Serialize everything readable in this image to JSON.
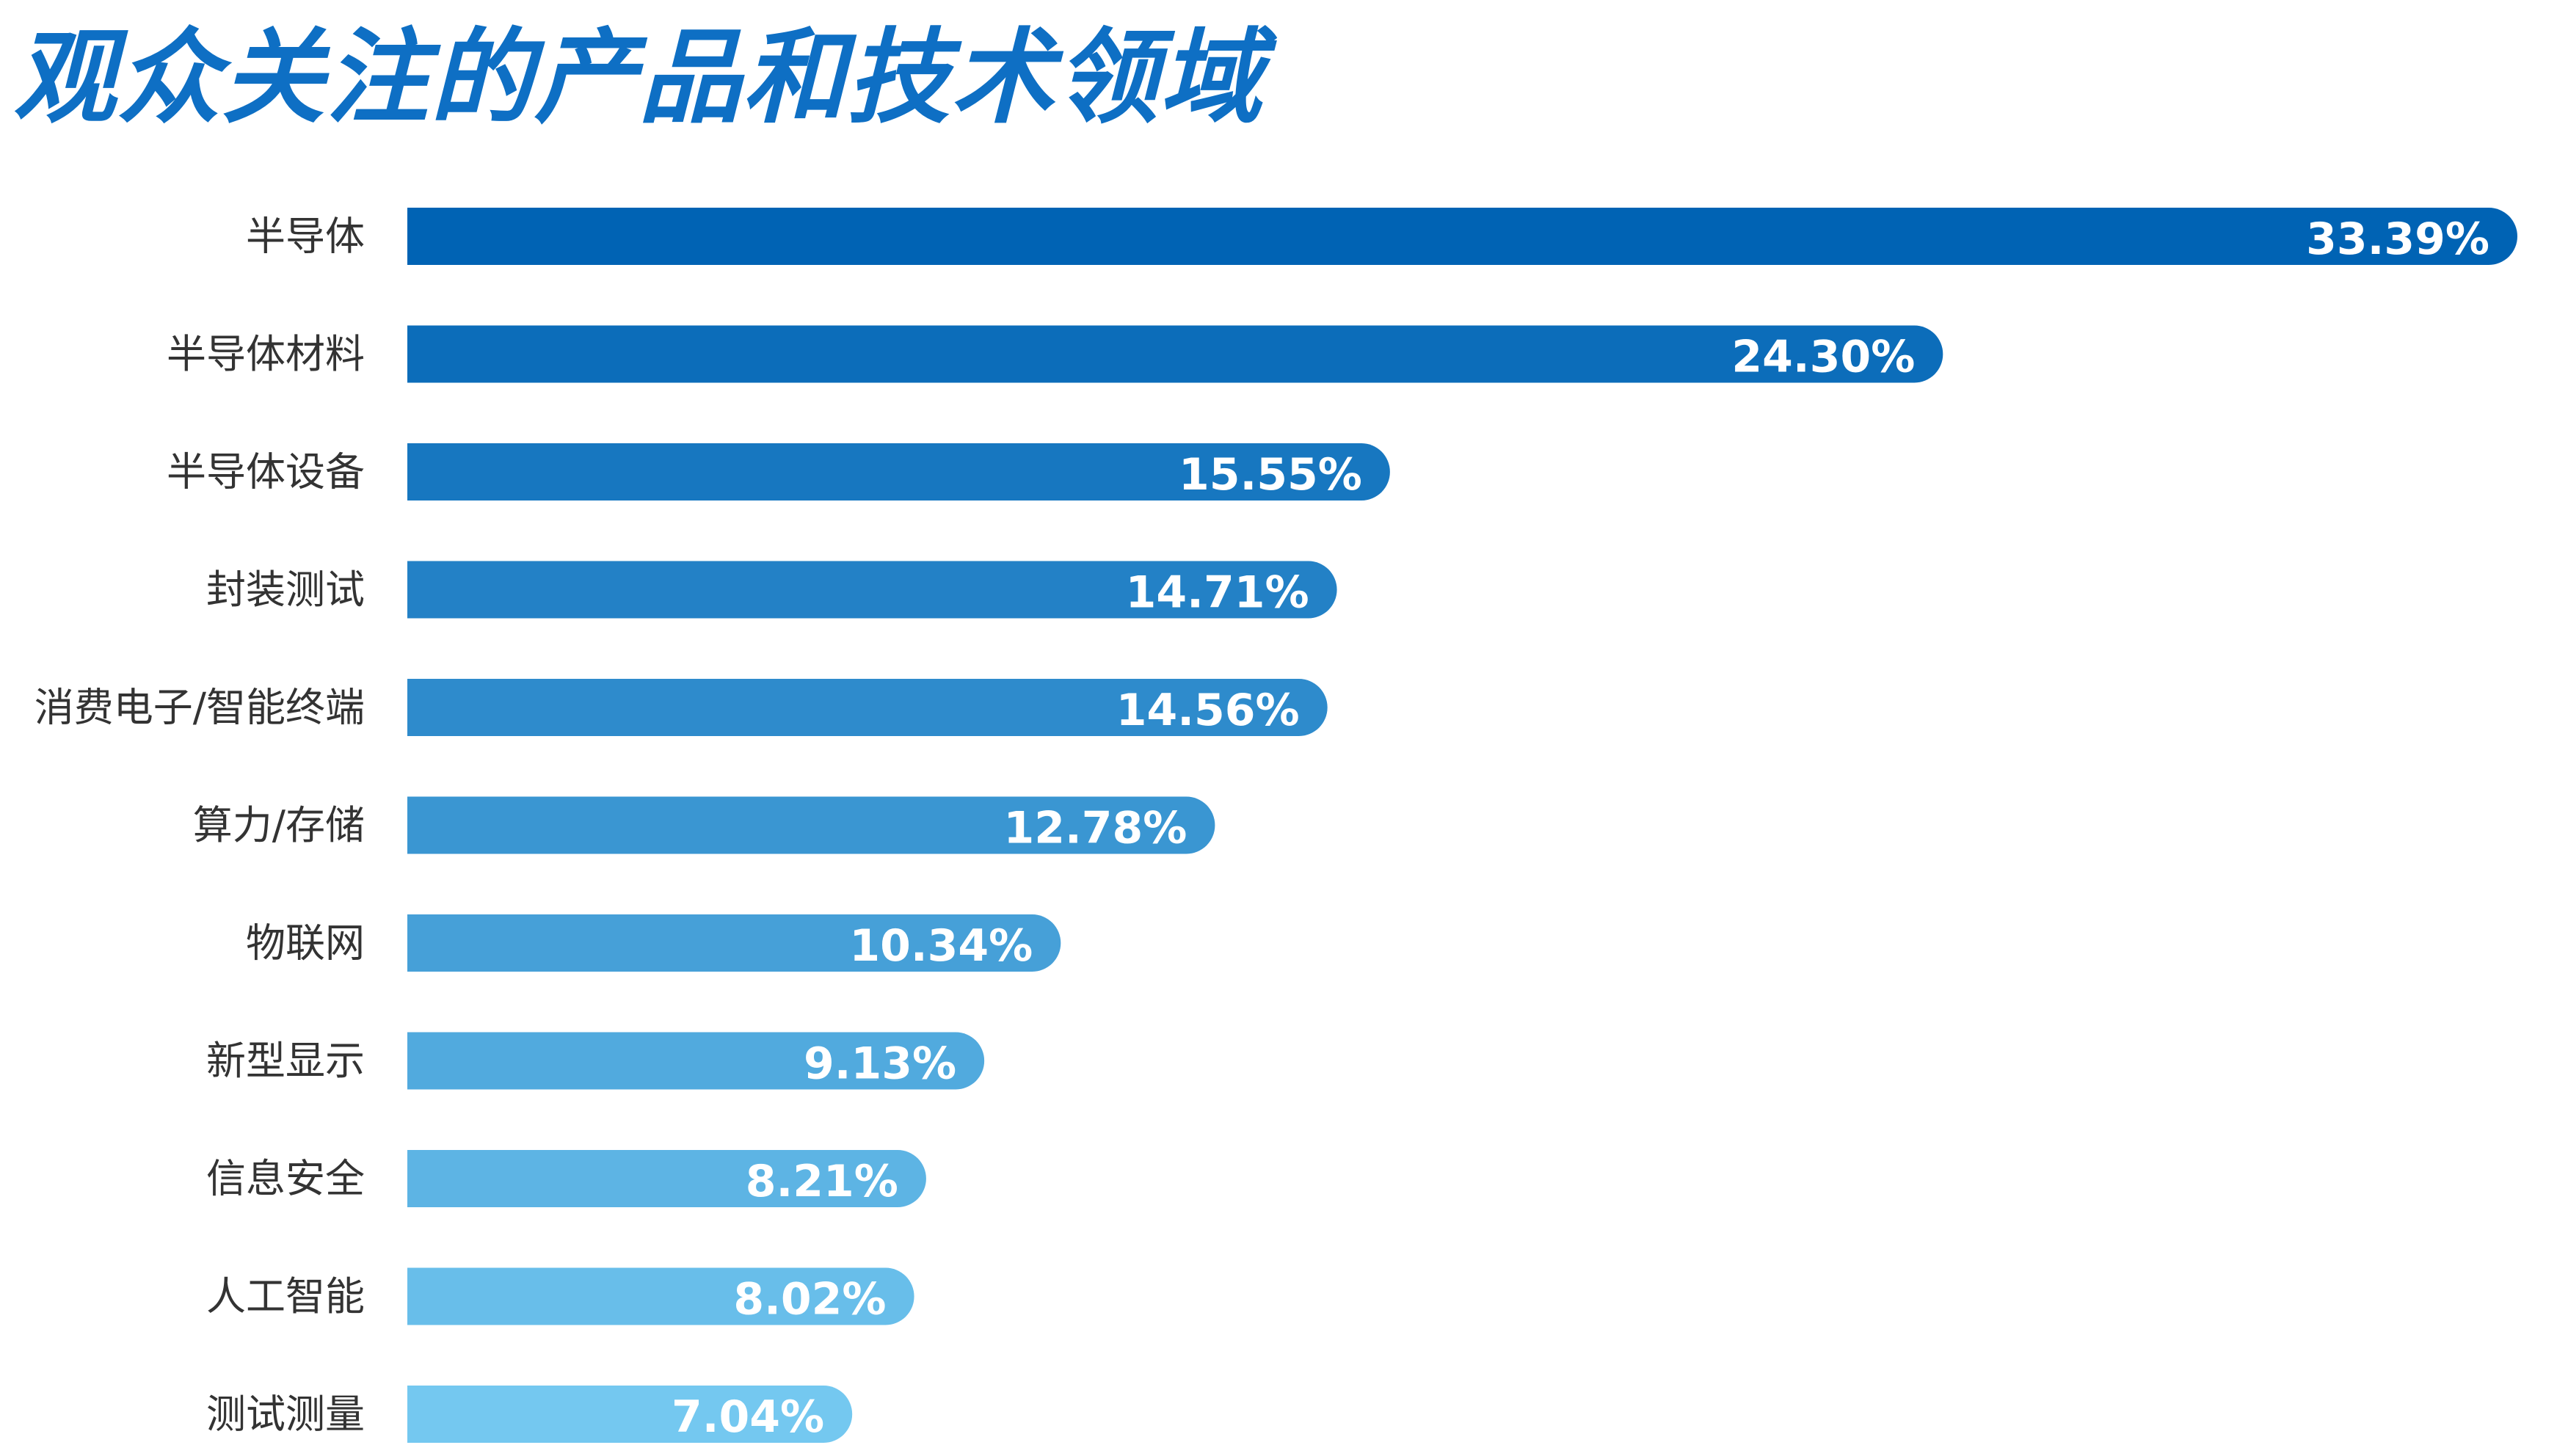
{
  "title": "观众关注的产品和技术领域",
  "chart_data": {
    "type": "bar",
    "orientation": "horizontal",
    "title": "观众关注的产品和技术领域",
    "categories": [
      "半导体",
      "半导体材料",
      "半导体设备",
      "封装测试",
      "消费电子/智能终端",
      "算力/存储",
      "物联网",
      "新型显示",
      "信息安全",
      "人工智能",
      "测试测量"
    ],
    "values": [
      33.39,
      24.3,
      15.55,
      14.71,
      14.56,
      12.78,
      10.34,
      9.13,
      8.21,
      8.02,
      7.04
    ],
    "value_labels": [
      "33.39%",
      "24.30%",
      "15.55%",
      "14.71%",
      "14.56%",
      "12.78%",
      "10.34%",
      "9.13%",
      "8.21%",
      "8.02%",
      "7.04%"
    ],
    "xlim": [
      0,
      33.39
    ],
    "grid": false,
    "legend": "none",
    "colors": {
      "start": "#0063b4",
      "end": "#74c8f0"
    }
  }
}
